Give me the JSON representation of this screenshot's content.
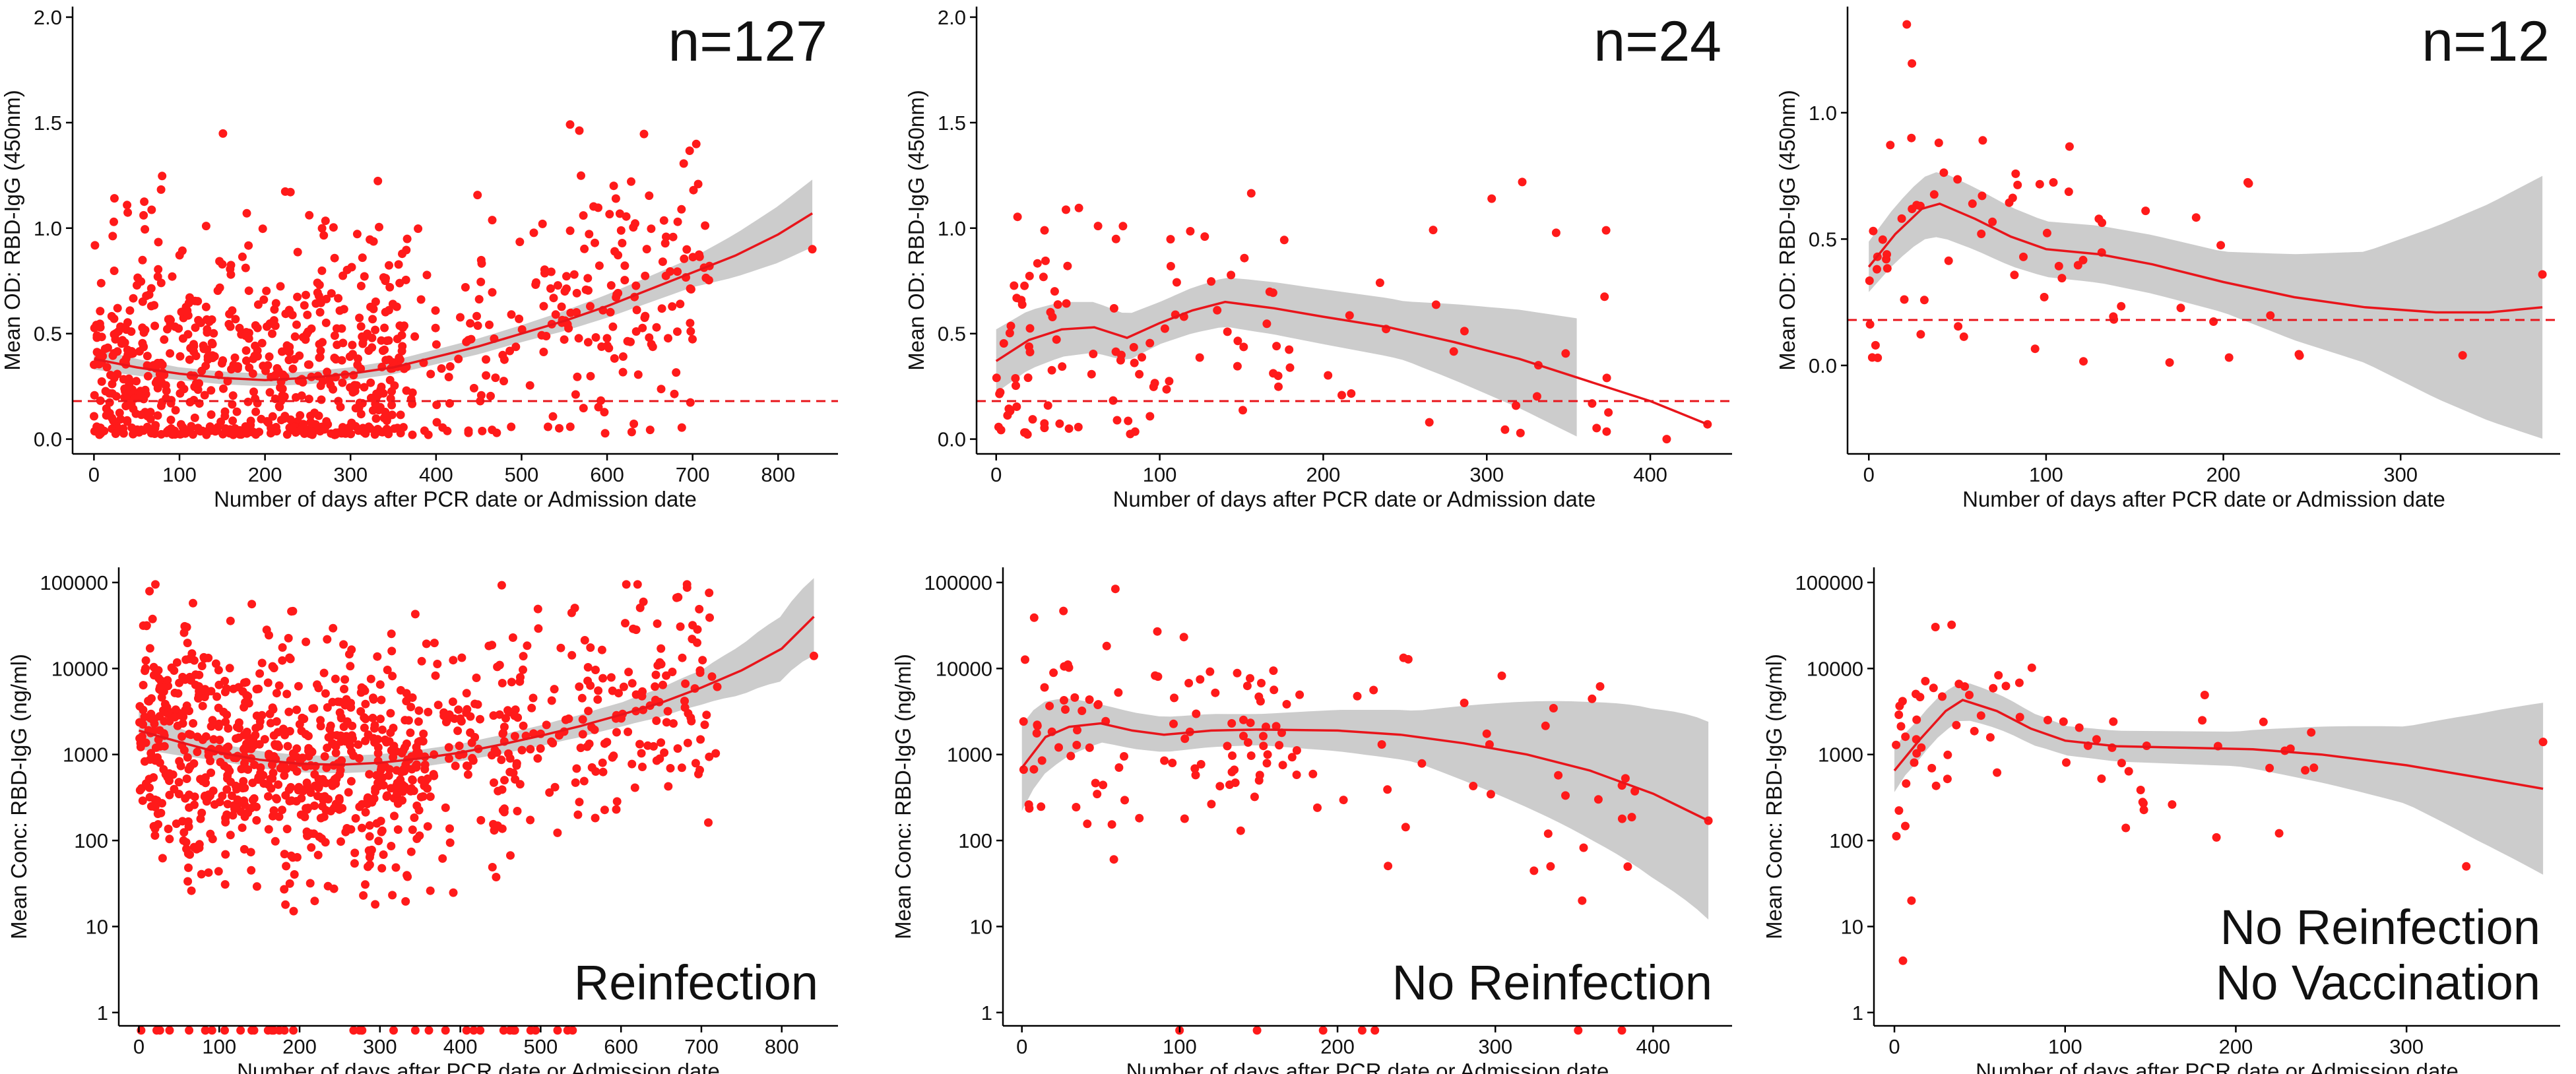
{
  "figure": {
    "marker_color": "#ff1a1a",
    "fit_color": "#e8151b",
    "band_color": "#cccccc",
    "threshold_color": "#e8151b"
  },
  "chart_data": [
    {
      "id": "p1",
      "type": "scatter",
      "scale": "linear",
      "n_label": "n=127",
      "panel_label": "",
      "xlabel": "Number of days after PCR date or Admission date",
      "ylabel": "Mean OD: RBD-IgG (450nm)",
      "xlim": [
        -25,
        870
      ],
      "ylim": [
        -0.07,
        2.05
      ],
      "xticks": [
        0,
        100,
        200,
        300,
        400,
        500,
        600,
        700,
        800
      ],
      "yticks": [
        0.0,
        0.5,
        1.0,
        1.5,
        2.0
      ],
      "ytick_labels": [
        "0.0",
        "0.5",
        "1.0",
        "1.5",
        "2.0"
      ],
      "threshold": 0.18,
      "seed": 11,
      "n_points": 900,
      "spread": 0.55,
      "x_max": 720,
      "floor": 0.02,
      "x_weights": [
        [
          0,
          60,
          3
        ],
        [
          60,
          360,
          2.5
        ],
        [
          360,
          720,
          0.9
        ]
      ],
      "fit": [
        [
          0,
          0.38
        ],
        [
          50,
          0.34
        ],
        [
          100,
          0.31
        ],
        [
          150,
          0.29
        ],
        [
          200,
          0.28
        ],
        [
          250,
          0.29
        ],
        [
          300,
          0.31
        ],
        [
          350,
          0.34
        ],
        [
          400,
          0.39
        ],
        [
          450,
          0.44
        ],
        [
          500,
          0.5
        ],
        [
          550,
          0.56
        ],
        [
          600,
          0.63
        ],
        [
          650,
          0.71
        ],
        [
          700,
          0.79
        ],
        [
          750,
          0.87
        ],
        [
          800,
          0.97
        ],
        [
          840,
          1.07
        ]
      ],
      "band_halfwidth": [
        [
          0,
          0.05
        ],
        [
          100,
          0.03
        ],
        [
          300,
          0.03
        ],
        [
          500,
          0.04
        ],
        [
          700,
          0.07
        ],
        [
          840,
          0.16
        ]
      ],
      "extra_points": [
        [
          840,
          0.9
        ]
      ]
    },
    {
      "id": "p2",
      "type": "scatter",
      "scale": "linear",
      "n_label": "n=24",
      "panel_label": "",
      "xlabel": "Number of days after PCR date or Admission date",
      "ylabel": "Mean OD: RBD-IgG (450nm)",
      "xlim": [
        -12,
        450
      ],
      "ylim": [
        -0.07,
        2.05
      ],
      "xticks": [
        0,
        100,
        200,
        300,
        400
      ],
      "yticks": [
        0.0,
        0.5,
        1.0,
        1.5,
        2.0
      ],
      "ytick_labels": [
        "0.0",
        "0.5",
        "1.0",
        "1.5",
        "2.0"
      ],
      "threshold": 0.18,
      "seed": 23,
      "n_points": 130,
      "spread": 0.6,
      "x_max": 380,
      "floor": 0.02,
      "x_weights": [
        [
          0,
          40,
          4
        ],
        [
          40,
          180,
          2
        ],
        [
          180,
          380,
          0.5
        ]
      ],
      "fit": [
        [
          0,
          0.37
        ],
        [
          20,
          0.47
        ],
        [
          40,
          0.52
        ],
        [
          60,
          0.53
        ],
        [
          80,
          0.48
        ],
        [
          100,
          0.55
        ],
        [
          120,
          0.61
        ],
        [
          140,
          0.65
        ],
        [
          170,
          0.62
        ],
        [
          200,
          0.58
        ],
        [
          240,
          0.53
        ],
        [
          280,
          0.46
        ],
        [
          320,
          0.38
        ],
        [
          360,
          0.28
        ],
        [
          400,
          0.18
        ],
        [
          435,
          0.07
        ]
      ],
      "band_halfwidth": [
        [
          0,
          0.15
        ],
        [
          100,
          0.1
        ],
        [
          150,
          0.12
        ],
        [
          250,
          0.14
        ],
        [
          355,
          0.28
        ]
      ],
      "band_end": 355,
      "extra_points": [
        [
          435,
          0.07
        ],
        [
          410,
          0.0
        ]
      ]
    },
    {
      "id": "p3",
      "type": "scatter",
      "scale": "linear",
      "n_label": "n=12",
      "panel_label": "",
      "xlabel": "Number of days after PCR date or Admission date",
      "ylabel": "Mean OD: RBD-IgG (450nm)",
      "xlim": [
        -12,
        390
      ],
      "ylim": [
        -0.35,
        1.42
      ],
      "xticks": [
        0,
        100,
        200,
        300
      ],
      "yticks": [
        0.0,
        0.5,
        1.0
      ],
      "ytick_labels": [
        "0.0",
        "0.5",
        "1.0"
      ],
      "threshold": 0.18,
      "seed": 37,
      "n_points": 70,
      "spread": 0.5,
      "x_max": 250,
      "floor": 0.01,
      "x_weights": [
        [
          0,
          40,
          5
        ],
        [
          40,
          150,
          2
        ],
        [
          150,
          250,
          0.6
        ]
      ],
      "fit": [
        [
          0,
          0.39
        ],
        [
          15,
          0.52
        ],
        [
          30,
          0.62
        ],
        [
          40,
          0.64
        ],
        [
          60,
          0.58
        ],
        [
          80,
          0.51
        ],
        [
          100,
          0.46
        ],
        [
          130,
          0.44
        ],
        [
          160,
          0.4
        ],
        [
          200,
          0.33
        ],
        [
          240,
          0.27
        ],
        [
          280,
          0.23
        ],
        [
          320,
          0.21
        ],
        [
          350,
          0.21
        ],
        [
          380,
          0.23
        ]
      ],
      "band_halfwidth": [
        [
          0,
          0.1
        ],
        [
          40,
          0.13
        ],
        [
          100,
          0.11
        ],
        [
          200,
          0.12
        ],
        [
          280,
          0.22
        ],
        [
          380,
          0.52
        ]
      ],
      "extra_points": [
        [
          335,
          0.04
        ],
        [
          380,
          0.36
        ],
        [
          5,
          0.03
        ]
      ]
    },
    {
      "id": "p4",
      "type": "scatter",
      "scale": "log",
      "n_label": "",
      "panel_label": "Reinfection",
      "xlabel": "Number of days after PCR date or Admission date",
      "ylabel": "Mean Conc: RBD-IgG (ng/ml)",
      "xlim": [
        -25,
        870
      ],
      "ylim": [
        0.7,
        150000
      ],
      "xticks": [
        0,
        100,
        200,
        300,
        400,
        500,
        600,
        700,
        800
      ],
      "yticks": [
        1,
        10,
        100,
        1000,
        10000,
        100000
      ],
      "ytick_labels": [
        "1",
        "10",
        "100",
        "1000",
        "10000",
        "100000"
      ],
      "threshold": null,
      "seed": 51,
      "n_points": 1000,
      "spread": 1.9,
      "x_max": 720,
      "floor": null,
      "x_weights": [
        [
          0,
          60,
          3
        ],
        [
          60,
          360,
          2.6
        ],
        [
          360,
          720,
          0.9
        ]
      ],
      "fit": [
        [
          0,
          1900
        ],
        [
          50,
          1400
        ],
        [
          100,
          1050
        ],
        [
          150,
          870
        ],
        [
          200,
          780
        ],
        [
          250,
          760
        ],
        [
          300,
          800
        ],
        [
          350,
          900
        ],
        [
          400,
          1050
        ],
        [
          450,
          1300
        ],
        [
          500,
          1650
        ],
        [
          550,
          2150
        ],
        [
          600,
          2900
        ],
        [
          650,
          4000
        ],
        [
          700,
          6000
        ],
        [
          750,
          9500
        ],
        [
          800,
          17000
        ],
        [
          840,
          40000
        ]
      ],
      "band_halfwidth": [
        [
          0,
          0.22
        ],
        [
          100,
          0.1
        ],
        [
          400,
          0.1
        ],
        [
          600,
          0.14
        ],
        [
          700,
          0.2
        ],
        [
          840,
          0.45
        ]
      ],
      "baseline_points": 38,
      "baseline_value": 0.62,
      "extra_points": [
        [
          840,
          14000
        ]
      ]
    },
    {
      "id": "p5",
      "type": "scatter",
      "scale": "log",
      "n_label": "",
      "panel_label": "No Reinfection",
      "xlabel": "Number of days after PCR date or Admission date",
      "ylabel": "Mean Conc: RBD-IgG (ng/ml)",
      "xlim": [
        -12,
        450
      ],
      "ylim": [
        0.7,
        150000
      ],
      "xticks": [
        0,
        100,
        200,
        300,
        400
      ],
      "yticks": [
        1,
        10,
        100,
        1000,
        10000,
        100000
      ],
      "ytick_labels": [
        "1",
        "10",
        "100",
        "1000",
        "10000",
        "100000"
      ],
      "threshold": null,
      "seed": 67,
      "n_points": 140,
      "spread": 1.8,
      "x_max": 400,
      "floor": null,
      "x_weights": [
        [
          0,
          40,
          4
        ],
        [
          40,
          180,
          2
        ],
        [
          180,
          400,
          0.5
        ]
      ],
      "fit": [
        [
          0,
          700
        ],
        [
          15,
          1600
        ],
        [
          30,
          2100
        ],
        [
          50,
          2300
        ],
        [
          70,
          1900
        ],
        [
          90,
          1700
        ],
        [
          120,
          1900
        ],
        [
          150,
          1950
        ],
        [
          200,
          1900
        ],
        [
          240,
          1700
        ],
        [
          280,
          1350
        ],
        [
          320,
          1000
        ],
        [
          360,
          650
        ],
        [
          400,
          350
        ],
        [
          435,
          170
        ]
      ],
      "band_halfwidth": [
        [
          0,
          0.5
        ],
        [
          50,
          0.22
        ],
        [
          150,
          0.18
        ],
        [
          250,
          0.3
        ],
        [
          350,
          0.75
        ],
        [
          435,
          1.15
        ]
      ],
      "baseline_points": 7,
      "baseline_value": 0.62,
      "extra_points": [
        [
          435,
          170
        ],
        [
          355,
          20
        ],
        [
          335,
          50
        ]
      ]
    },
    {
      "id": "p6",
      "type": "scatter",
      "scale": "log",
      "n_label": "",
      "panel_label": "No Reinfection|No Vaccination",
      "xlabel": "Number of days after PCR date or Admission date",
      "ylabel": "Mean Conc: RBD-IgG (ng/ml)",
      "xlim": [
        -12,
        390
      ],
      "ylim": [
        0.7,
        150000
      ],
      "xticks": [
        0,
        100,
        200,
        300
      ],
      "yticks": [
        1,
        10,
        100,
        1000,
        10000,
        100000
      ],
      "ytick_labels": [
        "1",
        "10",
        "100",
        "1000",
        "10000",
        "100000"
      ],
      "threshold": null,
      "seed": 79,
      "n_points": 70,
      "spread": 1.4,
      "x_max": 250,
      "floor": null,
      "x_weights": [
        [
          0,
          40,
          5
        ],
        [
          40,
          150,
          2
        ],
        [
          150,
          250,
          0.6
        ]
      ],
      "fit": [
        [
          0,
          650
        ],
        [
          15,
          1500
        ],
        [
          30,
          3200
        ],
        [
          40,
          4300
        ],
        [
          60,
          3200
        ],
        [
          80,
          2000
        ],
        [
          100,
          1450
        ],
        [
          130,
          1250
        ],
        [
          170,
          1200
        ],
        [
          210,
          1150
        ],
        [
          250,
          1000
        ],
        [
          300,
          750
        ],
        [
          340,
          550
        ],
        [
          380,
          400
        ]
      ],
      "band_halfwidth": [
        [
          0,
          0.25
        ],
        [
          40,
          0.22
        ],
        [
          100,
          0.17
        ],
        [
          200,
          0.2
        ],
        [
          300,
          0.45
        ],
        [
          380,
          1.0
        ]
      ],
      "extra_points": [
        [
          5,
          4
        ],
        [
          335,
          50
        ],
        [
          380,
          1400
        ],
        [
          10,
          20
        ]
      ]
    }
  ]
}
